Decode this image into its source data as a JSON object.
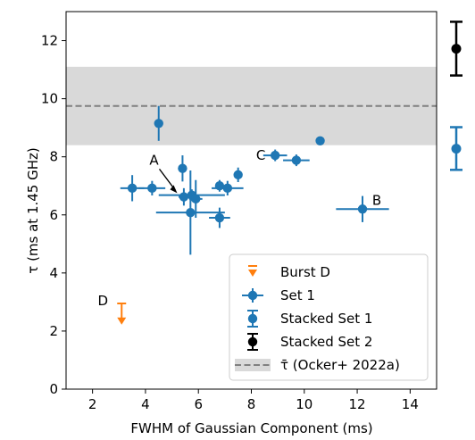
{
  "chart_data": {
    "type": "scatter",
    "xlabel": "FWHM of Gaussian Component (ms)",
    "ylabel": "τ (ms at 1.45 GHz)",
    "xlim": [
      1,
      15
    ],
    "ylim": [
      0,
      13
    ],
    "x_ticks": [
      2,
      4,
      6,
      8,
      10,
      12,
      14
    ],
    "y_ticks": [
      0,
      2,
      4,
      6,
      8,
      10,
      12
    ],
    "grid": false,
    "legend_position": "lower-right",
    "reference": {
      "label": "τ̄ (Ocker+ 2022a)",
      "mean": 9.75,
      "band": [
        8.4,
        11.1
      ],
      "line_color": "#808080",
      "band_color": "#d9d9d9"
    },
    "series": [
      {
        "name": "Burst D",
        "color": "#ff7f0e",
        "marker": "upper-limit",
        "points": [
          {
            "x": 3.1,
            "y": 2.95,
            "y_low": 2.25
          }
        ]
      },
      {
        "name": "Set 1",
        "color": "#1f77b4",
        "marker": "circle",
        "points": [
          {
            "x": 4.5,
            "y": 9.15,
            "xerr": 0.05,
            "yerr": 0.6
          },
          {
            "x": 10.6,
            "y": 8.55,
            "xerr": 0.1,
            "yerr": 0.12
          },
          {
            "x": 8.9,
            "y": 8.05,
            "xerr": 0.45,
            "yerr": 0.2
          },
          {
            "x": 9.7,
            "y": 7.88,
            "xerr": 0.5,
            "yerr": 0.2
          },
          {
            "x": 5.4,
            "y": 7.6,
            "xerr": 0.15,
            "yerr": 0.45
          },
          {
            "x": 7.5,
            "y": 7.38,
            "xerr": 0.15,
            "yerr": 0.25
          },
          {
            "x": 3.5,
            "y": 6.92,
            "xerr": 0.45,
            "yerr": 0.45
          },
          {
            "x": 4.25,
            "y": 6.92,
            "xerr": 0.5,
            "yerr": 0.25
          },
          {
            "x": 6.8,
            "y": 7.0,
            "xerr": 0.15,
            "yerr": 0.2
          },
          {
            "x": 7.1,
            "y": 6.92,
            "xerr": 0.6,
            "yerr": 0.25
          },
          {
            "x": 5.45,
            "y": 6.62,
            "xerr": 0.2,
            "yerr": 0.3
          },
          {
            "x": 5.75,
            "y": 6.68,
            "xerr": 1.25,
            "yerr": 0.2
          },
          {
            "x": 5.9,
            "y": 6.55,
            "xerr": 0.25,
            "yerr": 0.65
          },
          {
            "x": 5.7,
            "y": 6.08,
            "xerr": 1.3,
            "yerr": 1.45
          },
          {
            "x": 6.8,
            "y": 5.9,
            "xerr": 0.4,
            "yerr": 0.35
          },
          {
            "x": 12.2,
            "y": 6.2,
            "xerr": 1.0,
            "yerr": 0.45
          }
        ]
      },
      {
        "name": "Stacked Set 1",
        "color": "#1f77b4",
        "marker": "circle-errorbar",
        "points": [
          {
            "y": 8.28,
            "y_low": 7.55,
            "y_high": 9.02
          }
        ]
      },
      {
        "name": "Stacked Set 2",
        "color": "#000000",
        "marker": "circle-errorbar",
        "points": [
          {
            "y": 11.72,
            "y_low": 10.8,
            "y_high": 12.65
          }
        ]
      }
    ],
    "annotations": [
      {
        "text": "A",
        "x": 5.2,
        "y": 6.75,
        "arrow": true
      },
      {
        "text": "B",
        "x": 12.2,
        "y": 6.2
      },
      {
        "text": "C",
        "x": 8.9,
        "y": 8.05
      },
      {
        "text": "D",
        "x": 3.1,
        "y": 2.95
      }
    ]
  }
}
